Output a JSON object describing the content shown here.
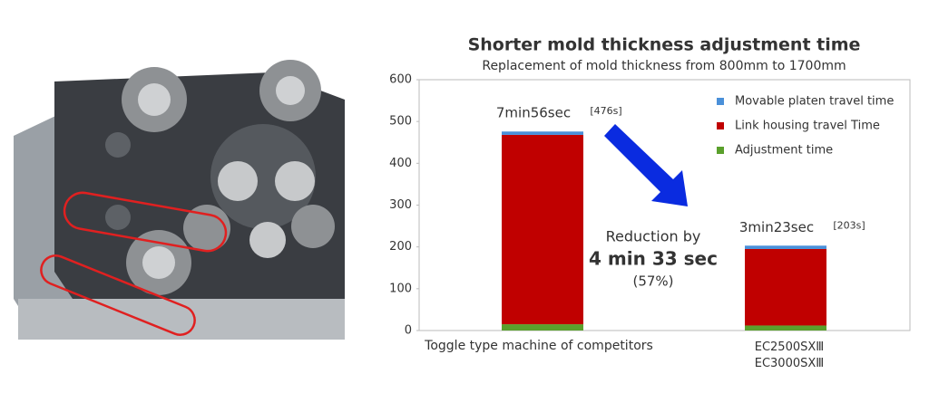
{
  "chart_data": {
    "type": "stacked-bar",
    "title": "Shorter mold thickness adjustment time",
    "subtitle": "Replacement of mold thickness from 800mm to 1700mm",
    "categories": [
      "Toggle type machine of competitors",
      "EC2500SXⅢ\nEC3000SXⅢ"
    ],
    "series": [
      {
        "name": "Adjustment time",
        "color": "#5aa02c",
        "values": [
          15,
          12
        ]
      },
      {
        "name": "Link housing travel Time",
        "color": "#c00000",
        "values": [
          453,
          183
        ]
      },
      {
        "name": "Movable platen travel time",
        "color": "#4a90d9",
        "values": [
          8,
          8
        ]
      }
    ],
    "totals": [
      476,
      203
    ],
    "total_labels": [
      [
        "7min56sec",
        "[476s]"
      ],
      [
        "3min23sec",
        "[203s]"
      ]
    ],
    "annotation": [
      "Reduction by",
      "4 min 33 sec",
      "(57%)"
    ],
    "ylim": [
      0,
      600
    ],
    "yticks": [
      0,
      100,
      200,
      300,
      400,
      500,
      600
    ],
    "grid": false,
    "legend": "top-right"
  }
}
